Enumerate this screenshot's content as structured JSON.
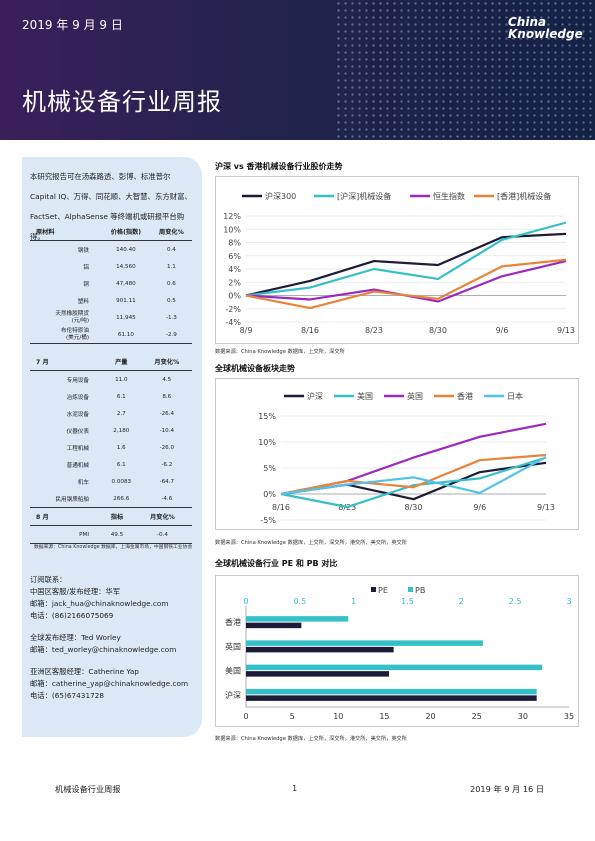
{
  "header": {
    "date": "2019 年 9 月 9 日",
    "logo_line1": "China",
    "logo_line2": "Knowledge",
    "title": "机械设备行业周报"
  },
  "sidebar": {
    "intro": "本研究报告可在汤森路透、彭博、标准普尔 Capital IQ、万得、同花顺、大智慧、东方财富、FactSet、AlphaSense 等终端机或研报平台购得。",
    "table1": {
      "headers": [
        "原材料",
        "价格(指数)",
        "周变化%"
      ],
      "rows": [
        [
          "钢铁",
          "140.40",
          "0.4"
        ],
        [
          "铝",
          "14,560",
          "1.1"
        ],
        [
          "铜",
          "47,480",
          "0.6"
        ],
        [
          "塑料",
          "901.11",
          "0.5"
        ],
        [
          "天然橡胶期货\n(元/吨)",
          "11,945",
          "-1.3"
        ],
        [
          "布伦特原油\n(美元/桶)",
          "61.10",
          "-2.9"
        ]
      ]
    },
    "table2": {
      "headers": [
        "7 月",
        "产量",
        "月变化%"
      ],
      "rows": [
        [
          "专用设备",
          "11.0",
          "4.5"
        ],
        [
          "冶炼设备",
          "6.1",
          "8.6"
        ],
        [
          "水泥设备",
          "2.7",
          "-26.4"
        ],
        [
          "仪器仪表",
          "2,180",
          "-10.4"
        ],
        [
          "工程机械",
          "1.6",
          "-26.0"
        ],
        [
          "普通机械",
          "6.1",
          "-6.2"
        ],
        [
          "机车",
          "0.0083",
          "-64.7"
        ],
        [
          "民用钢质船舶",
          "266.6",
          "-4.6"
        ]
      ]
    },
    "table3": {
      "headers": [
        "8 月",
        "指标",
        "月变化%"
      ],
      "rows": [
        [
          "PMI",
          "49.5",
          "-0.4"
        ]
      ]
    },
    "source": "数据来源：China Knowledge 数据库，上海金属市场，中国钢铁工业协会",
    "contacts": [
      "订阅联系：",
      "中国区客服/发布经理：华军",
      "邮箱：jack_hua@chinaknowledge.com",
      "电话：(86)2166075069",
      "",
      "全球发布经理：Ted Worley",
      "邮箱：ted_worley@chinaknowledge.com",
      "",
      "亚洲区客服经理：Catherine Yap",
      "邮箱：catherine_yap@chinaknowledge.com",
      "电话：(65)67431728"
    ]
  },
  "sections": {
    "s1_title": "沪深 vs 香港机械设备行业股价走势",
    "s1_source": "数据来源：China Knowledge 数据库，上交所，深交所",
    "s2_title": "全球机械设备板块走势",
    "s2_source": "数据来源：China Knowledge 数据库，上交所，深交所，港交所，美交所，英交所",
    "s3_title": "全球机械设备行业 PE 和 PB 对比",
    "s3_source": "数据来源：China Knowledge 数据库，上交所，深交所，港交所，美交所，英交所"
  },
  "footer": {
    "left": "机械设备行业周报",
    "page": "1",
    "right": "2019 年 9 月 16 日"
  },
  "chart_data": [
    {
      "type": "line",
      "x": [
        "8/9",
        "8/16",
        "8/23",
        "8/30",
        "9/6",
        "9/13"
      ],
      "yticks": [
        "12%",
        "10%",
        "8%",
        "6%",
        "4%",
        "2%",
        "0%",
        "-2%",
        "-4%"
      ],
      "ylim": [
        -4,
        12
      ],
      "legend": "top",
      "series": [
        {
          "name": "沪深300",
          "color": "#1c1c3a",
          "values": [
            0,
            2.2,
            5.2,
            4.6,
            8.8,
            9.3
          ]
        },
        {
          "name": "[沪深]机械设备",
          "color": "#35c0c8",
          "values": [
            0,
            1.2,
            4.0,
            2.5,
            8.4,
            11.0
          ]
        },
        {
          "name": "恒生指数",
          "color": "#9b28c2",
          "values": [
            0,
            -0.6,
            0.9,
            -0.9,
            2.9,
            5.2
          ]
        },
        {
          "name": "[香港]机械设备",
          "color": "#e8843a",
          "values": [
            0,
            -1.9,
            0.6,
            -0.5,
            4.4,
            5.4
          ]
        }
      ]
    },
    {
      "type": "line",
      "x": [
        "8/16",
        "8/23",
        "8/30",
        "9/6",
        "9/13"
      ],
      "yticks": [
        "15%",
        "10%",
        "5%",
        "0%",
        "-5%"
      ],
      "ylim": [
        -5,
        15
      ],
      "legend": "top",
      "series": [
        {
          "name": "沪深",
          "color": "#1c1c3a",
          "values": [
            0,
            1.8,
            -1.0,
            4.2,
            6.0
          ]
        },
        {
          "name": "美国",
          "color": "#35c0c8",
          "values": [
            0,
            -2.5,
            1.7,
            3.0,
            7.0
          ]
        },
        {
          "name": "英国",
          "color": "#9b28c2",
          "values": [
            0,
            2.5,
            7.0,
            11.0,
            13.5
          ]
        },
        {
          "name": "香港",
          "color": "#e8843a",
          "values": [
            0,
            2.5,
            1.3,
            6.5,
            7.5
          ]
        },
        {
          "name": "日本",
          "color": "#4fc3e8",
          "values": [
            0,
            1.8,
            3.2,
            0.2,
            7.1
          ]
        }
      ]
    },
    {
      "type": "bar",
      "orientation": "horizontal",
      "categories": [
        "香港",
        "英国",
        "美国",
        "沪深"
      ],
      "pe_ticks": [
        "0",
        "5",
        "10",
        "15",
        "20",
        "25",
        "30",
        "35"
      ],
      "pb_ticks": [
        "0",
        "0.5",
        "1",
        "1.5",
        "2",
        "2.5",
        "3"
      ],
      "legend": "top",
      "series": [
        {
          "name": "PE",
          "color": "#1c1c3a",
          "axis": "bottom",
          "range": [
            0,
            35
          ],
          "values": [
            6.0,
            16.0,
            15.5,
            31.5
          ]
        },
        {
          "name": "PB",
          "color": "#35c0c8",
          "axis": "top",
          "range": [
            0,
            3
          ],
          "values": [
            0.95,
            2.2,
            2.75,
            2.7
          ]
        }
      ]
    }
  ]
}
